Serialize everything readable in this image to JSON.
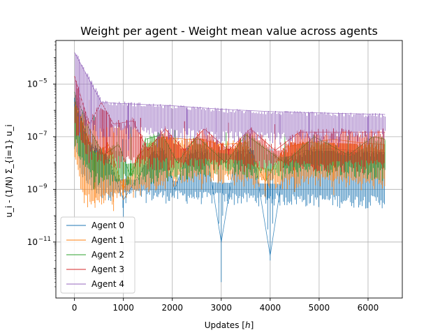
{
  "chart_data": {
    "type": "line",
    "title": "Weight per agent - Weight mean value across agents",
    "xlabel": "Updates [h]",
    "xlabel_text": "Updates [",
    "xlabel_var": "h",
    "xlabel_close": "]",
    "ylabel": "u_i - (1/N) Σ_{i=1} u_i",
    "yscale": "log",
    "xlim": [
      -380,
      6700
    ],
    "ylim": [
      7.5e-14,
      0.00045
    ],
    "grid": true,
    "legend_position": "lower-left",
    "x_ticks": [
      0,
      1000,
      2000,
      3000,
      4000,
      5000,
      6000
    ],
    "x_tick_labels": [
      "0",
      "1000",
      "2000",
      "3000",
      "4000",
      "5000",
      "6000"
    ],
    "y_ticks": [
      1e-11,
      1e-09,
      1e-07,
      1e-05
    ],
    "y_tick_labels": [
      {
        "base": "10",
        "exp": "−11"
      },
      {
        "base": "10",
        "exp": "−9"
      },
      {
        "base": "10",
        "exp": "−7"
      },
      {
        "base": "10",
        "exp": "−5"
      }
    ],
    "series": [
      {
        "name": "Agent 0",
        "color": "#1f77b4",
        "upper": [
          [
            0,
            3e-06
          ],
          [
            150,
            8e-07
          ],
          [
            300,
            3e-07
          ],
          [
            600,
            1.5e-07
          ],
          [
            1000,
            8e-08
          ],
          [
            2000,
            5e-08
          ],
          [
            3000,
            4e-08
          ],
          [
            4000,
            3.5e-08
          ],
          [
            5000,
            3e-08
          ],
          [
            6350,
            2.5e-08
          ]
        ],
        "lower": [
          [
            0,
            5e-08
          ],
          [
            200,
            3e-09
          ],
          [
            500,
            1e-09
          ],
          [
            1000,
            8e-10
          ],
          [
            2000,
            7e-10
          ],
          [
            3000,
            6e-10
          ],
          [
            4000,
            5.5e-10
          ],
          [
            5000,
            5e-10
          ],
          [
            6350,
            4.5e-10
          ]
        ],
        "dips": [
          [
            990,
            2e-10
          ],
          [
            1000,
            8e-11
          ],
          [
            1050,
            3e-10
          ],
          [
            2950,
            5e-11
          ],
          [
            3000,
            3e-13
          ],
          [
            3030,
            1e-10
          ],
          [
            3950,
            3e-11
          ],
          [
            4000,
            2e-12
          ],
          [
            4050,
            5e-11
          ]
        ],
        "envelope": [
          [
            0,
            3e-06
          ],
          [
            300,
            5e-08
          ],
          [
            700,
            1.5e-08
          ],
          [
            1000,
            4e-10
          ],
          [
            1300,
            3e-09
          ],
          [
            1600,
            2.5e-08
          ],
          [
            1850,
            3e-08
          ],
          [
            2050,
            1e-09
          ],
          [
            2300,
            2e-08
          ],
          [
            2700,
            3e-08
          ],
          [
            3000,
            1e-11
          ],
          [
            3300,
            2.5e-08
          ],
          [
            3650,
            3e-08
          ],
          [
            4000,
            3e-12
          ],
          [
            4300,
            1.5e-08
          ],
          [
            4700,
            3e-08
          ],
          [
            5200,
            3.5e-08
          ],
          [
            5700,
            3e-08
          ],
          [
            6350,
            2.5e-08
          ]
        ]
      },
      {
        "name": "Agent 1",
        "color": "#ff7f0e",
        "upper": [
          [
            0,
            2e-06
          ],
          [
            150,
            5e-07
          ],
          [
            300,
            3e-07
          ],
          [
            600,
            2e-07
          ],
          [
            1000,
            1.3e-07
          ],
          [
            2000,
            9e-08
          ],
          [
            3000,
            8e-08
          ],
          [
            4000,
            7e-08
          ],
          [
            5000,
            6e-08
          ],
          [
            6350,
            5e-08
          ]
        ],
        "lower": [
          [
            0,
            2e-08
          ],
          [
            200,
            5e-10
          ],
          [
            500,
            5e-10
          ],
          [
            1000,
            8e-10
          ],
          [
            2000,
            3e-09
          ],
          [
            3000,
            4e-09
          ],
          [
            4000,
            2e-09
          ],
          [
            5000,
            3e-09
          ],
          [
            6350,
            2e-09
          ]
        ],
        "dips": [
          [
            200,
            3e-10
          ],
          [
            420,
            2e-10
          ],
          [
            600,
            3e-10
          ],
          [
            800,
            1.5e-10
          ],
          [
            1000,
            4e-10
          ],
          [
            2600,
            1e-09
          ],
          [
            3900,
            5e-10
          ],
          [
            4500,
            8e-10
          ],
          [
            5300,
            6e-10
          ]
        ],
        "envelope": [
          [
            0,
            2e-06
          ],
          [
            400,
            2e-08
          ],
          [
            700,
            5e-08
          ],
          [
            1000,
            1e-09
          ],
          [
            1300,
            2e-08
          ],
          [
            1750,
            1e-07
          ],
          [
            2300,
            8e-08
          ],
          [
            2600,
            8e-08
          ],
          [
            3000,
            5e-08
          ],
          [
            3500,
            6e-08
          ],
          [
            3900,
            2e-09
          ],
          [
            4300,
            4e-08
          ],
          [
            4800,
            6e-08
          ],
          [
            5300,
            8e-08
          ],
          [
            5800,
            6e-08
          ],
          [
            6350,
            5e-08
          ]
        ]
      },
      {
        "name": "Agent 2",
        "color": "#2ca02c",
        "upper": [
          [
            0,
            5e-06
          ],
          [
            150,
            1.5e-06
          ],
          [
            300,
            8e-07
          ],
          [
            600,
            4e-07
          ],
          [
            1000,
            2.5e-07
          ],
          [
            2000,
            1.8e-07
          ],
          [
            3000,
            1.5e-07
          ],
          [
            4000,
            1.3e-07
          ],
          [
            5000,
            1.2e-07
          ],
          [
            6350,
            1e-07
          ]
        ],
        "lower": [
          [
            0,
            1e-07
          ],
          [
            200,
            1e-08
          ],
          [
            500,
            3e-09
          ],
          [
            1000,
            3e-09
          ],
          [
            2000,
            5e-09
          ],
          [
            3000,
            8e-09
          ],
          [
            4000,
            5e-09
          ],
          [
            5000,
            8e-09
          ],
          [
            6350,
            5e-09
          ]
        ],
        "dips": [
          [
            400,
            1e-09
          ],
          [
            900,
            2e-09
          ],
          [
            1150,
            1.5e-09
          ],
          [
            2050,
            3e-09
          ],
          [
            3100,
            5e-09
          ],
          [
            4300,
            3e-09
          ],
          [
            5600,
            4e-09
          ]
        ],
        "envelope": [
          [
            0,
            5e-06
          ],
          [
            300,
            2e-07
          ],
          [
            600,
            2e-08
          ],
          [
            900,
            5e-08
          ],
          [
            1150,
            3e-09
          ],
          [
            1450,
            8e-08
          ],
          [
            1800,
            1.2e-07
          ],
          [
            2100,
            1e-08
          ],
          [
            2500,
            1e-07
          ],
          [
            3100,
            1e-08
          ],
          [
            3500,
            1.2e-07
          ],
          [
            4300,
            1e-08
          ],
          [
            4900,
            1e-07
          ],
          [
            5600,
            2e-08
          ],
          [
            6100,
            1e-07
          ],
          [
            6350,
            8e-08
          ]
        ]
      },
      {
        "name": "Agent 3",
        "color": "#d62728",
        "upper": [
          [
            0,
            2e-05
          ],
          [
            150,
            6e-06
          ],
          [
            300,
            2.5e-06
          ],
          [
            600,
            1e-06
          ],
          [
            1000,
            6e-07
          ],
          [
            2000,
            4e-07
          ],
          [
            3000,
            3.5e-07
          ],
          [
            4000,
            3e-07
          ],
          [
            5000,
            2.7e-07
          ],
          [
            6350,
            2.5e-07
          ]
        ],
        "lower": [
          [
            0,
            3e-07
          ],
          [
            200,
            5e-08
          ],
          [
            500,
            2e-08
          ],
          [
            1000,
            1.5e-08
          ],
          [
            2000,
            1.2e-08
          ],
          [
            3000,
            1.2e-08
          ],
          [
            4000,
            1e-08
          ],
          [
            5000,
            1e-08
          ],
          [
            6350,
            1e-08
          ]
        ],
        "dips": [
          [
            300,
            1e-08
          ],
          [
            650,
            1e-08
          ],
          [
            1350,
            1.5e-08
          ],
          [
            2250,
            2e-08
          ],
          [
            3150,
            2e-08
          ],
          [
            4100,
            1.5e-08
          ]
        ],
        "envelope": [
          [
            0,
            2e-05
          ],
          [
            300,
            3e-07
          ],
          [
            550,
            2e-06
          ],
          [
            800,
            3e-07
          ],
          [
            1200,
            4e-07
          ],
          [
            1500,
            3e-08
          ],
          [
            1850,
            2e-07
          ],
          [
            2250,
            3e-08
          ],
          [
            2650,
            2e-07
          ],
          [
            3150,
            3e-08
          ],
          [
            3600,
            2e-07
          ],
          [
            4100,
            3e-08
          ],
          [
            4600,
            1.5e-07
          ],
          [
            5300,
            1.5e-07
          ],
          [
            6350,
            1.5e-07
          ]
        ]
      },
      {
        "name": "Agent 4",
        "color": "#9467bd",
        "upper": [
          [
            0,
            0.00016
          ],
          [
            50,
            0.00013
          ],
          [
            150,
            6e-05
          ],
          [
            300,
            2e-05
          ],
          [
            450,
            6e-06
          ],
          [
            550,
            2.5e-06
          ],
          [
            700,
            2e-06
          ],
          [
            1000,
            2e-06
          ],
          [
            2000,
            1.5e-06
          ],
          [
            3000,
            1.1e-06
          ],
          [
            4000,
            9e-07
          ],
          [
            5000,
            8e-07
          ],
          [
            6350,
            7e-07
          ]
        ],
        "lower": [
          [
            0,
            2e-06
          ],
          [
            150,
            6e-07
          ],
          [
            300,
            3e-07
          ],
          [
            450,
            2e-07
          ],
          [
            550,
            1.5e-07
          ],
          [
            700,
            2e-07
          ],
          [
            1000,
            1.8e-07
          ],
          [
            2000,
            1.8e-07
          ],
          [
            3000,
            1.3e-07
          ],
          [
            4000,
            1.1e-07
          ],
          [
            5000,
            1.2e-07
          ],
          [
            6350,
            1.5e-07
          ]
        ],
        "dips": [
          [
            100,
            1e-07
          ],
          [
            350,
            6e-08
          ],
          [
            500,
            1e-07
          ],
          [
            1100,
            3e-08
          ],
          [
            1700,
            4e-08
          ],
          [
            2300,
            3e-08
          ],
          [
            2900,
            5e-08
          ],
          [
            3600,
            4e-08
          ],
          [
            4200,
            5e-08
          ],
          [
            4800,
            3e-08
          ],
          [
            5400,
            4e-08
          ],
          [
            6000,
            5e-08
          ]
        ],
        "envelope": [
          [
            0,
            0.00016
          ],
          [
            550,
            2e-06
          ],
          [
            1000,
            1.8e-06
          ],
          [
            2000,
            1.5e-06
          ],
          [
            3000,
            1.1e-06
          ],
          [
            4000,
            9e-07
          ],
          [
            5000,
            8e-07
          ],
          [
            6350,
            7e-07
          ]
        ]
      }
    ]
  }
}
